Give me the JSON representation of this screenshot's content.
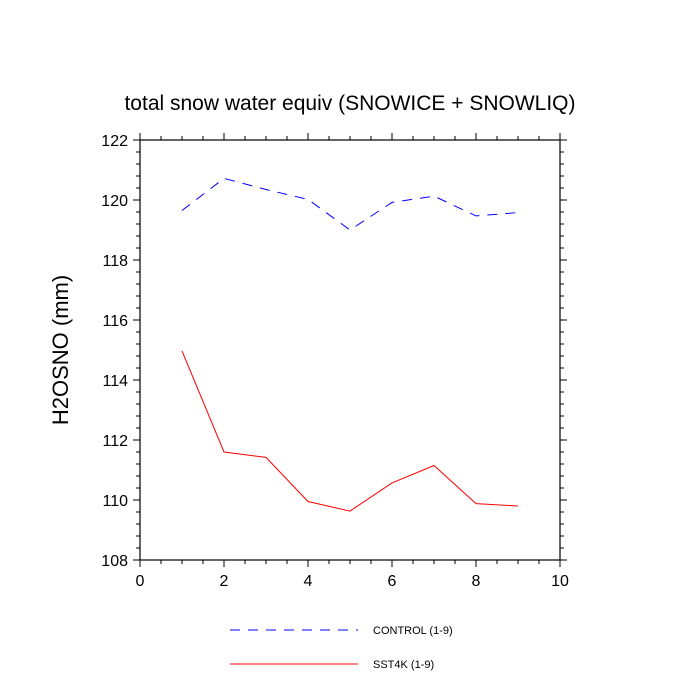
{
  "chart_data": {
    "type": "line",
    "title": "total snow water equiv (SNOWICE + SNOWLIQ)",
    "xlabel": "",
    "ylabel": "H2OSNO  (mm)",
    "xlim": [
      0,
      10
    ],
    "ylim": [
      108,
      122
    ],
    "xticks": [
      0,
      2,
      4,
      6,
      8,
      10
    ],
    "yticks": [
      108,
      110,
      112,
      114,
      116,
      118,
      120,
      122
    ],
    "xtick_labels": [
      "0",
      "2",
      "4",
      "6",
      "8",
      "10"
    ],
    "ytick_labels": [
      "108",
      "110",
      "112",
      "114",
      "116",
      "118",
      "120",
      "122"
    ],
    "grid": false,
    "legend_position": "bottom-center",
    "series": [
      {
        "name": "CONTROL (1-9)",
        "color": "#0000ff",
        "style": "dashed",
        "x": [
          1,
          2,
          3,
          4,
          5,
          6,
          7,
          8,
          9
        ],
        "y": [
          119.65,
          120.72,
          120.35,
          120.02,
          119.0,
          119.92,
          120.13,
          119.47,
          119.58
        ]
      },
      {
        "name": "SST4K (1-9)",
        "color": "#ff0000",
        "style": "solid",
        "x": [
          1,
          2,
          3,
          4,
          5,
          6,
          7,
          8,
          9
        ],
        "y": [
          114.97,
          111.6,
          111.42,
          109.95,
          109.63,
          110.57,
          111.15,
          109.88,
          109.8
        ]
      }
    ]
  }
}
